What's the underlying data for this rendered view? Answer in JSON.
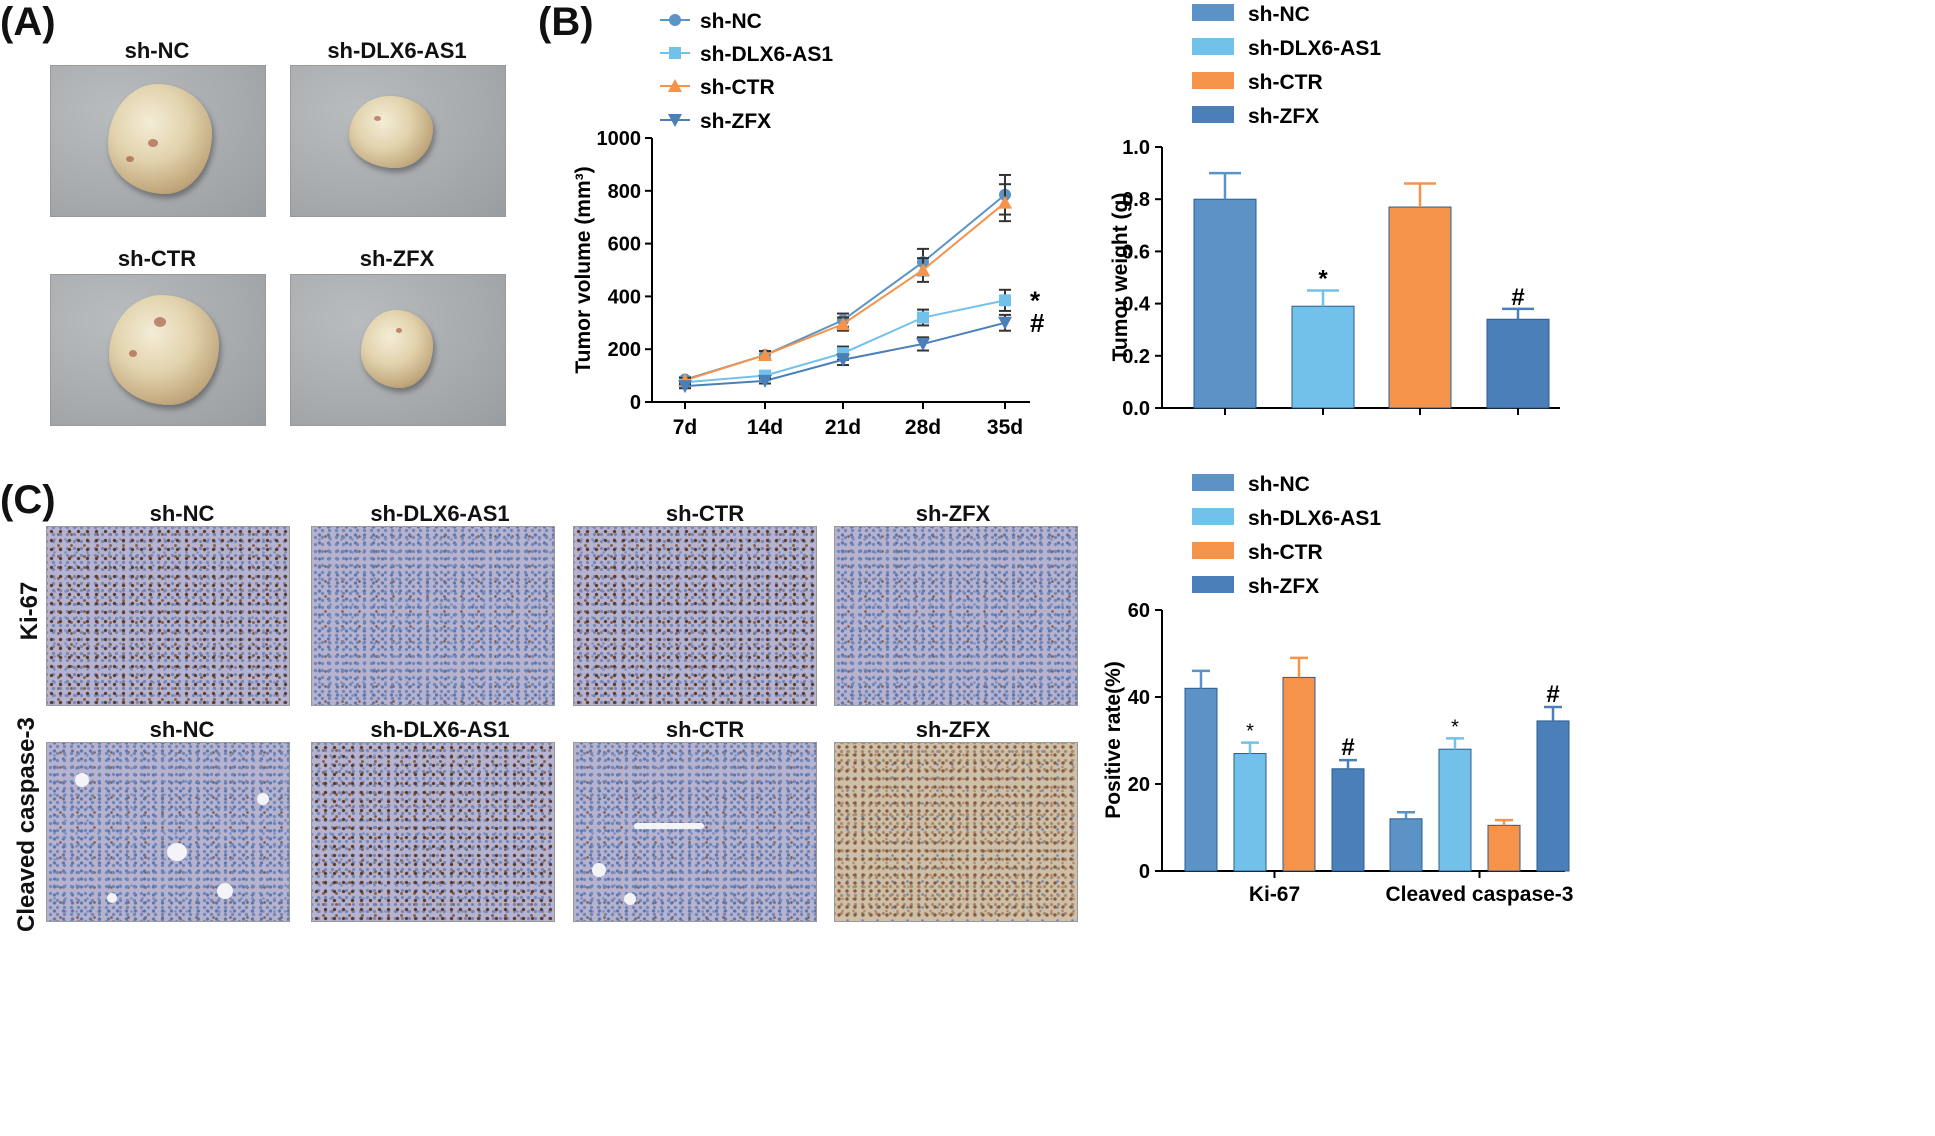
{
  "panels": {
    "a": {
      "label": "(A)",
      "images": [
        "sh-NC",
        "sh-DLX6-AS1",
        "sh-CTR",
        "sh-ZFX"
      ]
    },
    "b": {
      "label": "(B)"
    },
    "c": {
      "label": "(C)",
      "columns": [
        "sh-NC",
        "sh-DLX6-AS1",
        "sh-CTR",
        "sh-ZFX"
      ],
      "rows": [
        "Ki-67",
        "Cleaved caspase-3"
      ]
    }
  },
  "colors": {
    "sh-NC": "#5b93c7",
    "sh-DLX6-AS1": "#72c1ea",
    "sh-CTR": "#f5934b",
    "sh-ZFX": "#4a7fb9"
  },
  "chart_data": [
    {
      "type": "line",
      "categories": [
        "7d",
        "14d",
        "21d",
        "28d",
        "35d"
      ],
      "xlabel": "",
      "ylabel": "Tumor volume (mm³)",
      "ylim": [
        0,
        1000
      ],
      "yticks": [
        "0",
        "200",
        "400",
        "600",
        "800",
        "1000"
      ],
      "legend": [
        "sh-NC",
        "sh-DLX6-AS1",
        "sh-CTR",
        "sh-ZFX"
      ],
      "series": [
        {
          "name": "sh-NC",
          "marker": "circle",
          "values": [
            85,
            178,
            310,
            530,
            785
          ],
          "errors": [
            10,
            15,
            25,
            50,
            75
          ]
        },
        {
          "name": "sh-DLX6-AS1",
          "marker": "square",
          "values": [
            75,
            100,
            185,
            320,
            385
          ],
          "errors": [
            8,
            15,
            25,
            30,
            40
          ]
        },
        {
          "name": "sh-CTR",
          "marker": "triangle-up",
          "values": [
            82,
            178,
            295,
            500,
            755
          ],
          "errors": [
            10,
            15,
            25,
            45,
            70
          ]
        },
        {
          "name": "sh-ZFX",
          "marker": "triangle-down",
          "values": [
            60,
            80,
            160,
            220,
            300
          ],
          "errors": [
            8,
            10,
            20,
            25,
            30
          ]
        }
      ],
      "annotations": [
        {
          "series": "sh-DLX6-AS1",
          "text": "*"
        },
        {
          "series": "sh-ZFX",
          "text": "#"
        }
      ]
    },
    {
      "type": "bar",
      "categories": [
        "sh-NC",
        "sh-DLX6-AS1",
        "sh-CTR",
        "sh-ZFX"
      ],
      "values": [
        0.8,
        0.39,
        0.77,
        0.34
      ],
      "errors": [
        0.1,
        0.06,
        0.09,
        0.04
      ],
      "annotations": [
        "",
        "*",
        "",
        "#"
      ],
      "ylabel": "Tumor weight (g)",
      "ylim": [
        0,
        1.0
      ],
      "yticks": [
        "0.0",
        "0.2",
        "0.4",
        "0.6",
        "0.8",
        "1.0"
      ],
      "legend": [
        "sh-NC",
        "sh-DLX6-AS1",
        "sh-CTR",
        "sh-ZFX"
      ]
    },
    {
      "type": "bar",
      "categories": [
        "Ki-67",
        "Cleaved caspase-3"
      ],
      "series": [
        {
          "name": "sh-NC",
          "values": [
            42,
            12
          ],
          "errors": [
            4,
            1.5
          ],
          "annotations": [
            "",
            ""
          ]
        },
        {
          "name": "sh-DLX6-AS1",
          "values": [
            27,
            28
          ],
          "errors": [
            2.5,
            2.5
          ],
          "annotations": [
            "*",
            "*"
          ]
        },
        {
          "name": "sh-CTR",
          "values": [
            44.5,
            10.5
          ],
          "errors": [
            4.5,
            1.2
          ],
          "annotations": [
            "",
            ""
          ]
        },
        {
          "name": "sh-ZFX",
          "values": [
            23.5,
            34.5
          ],
          "errors": [
            2,
            3.2
          ],
          "annotations": [
            "#",
            "#"
          ]
        }
      ],
      "ylabel": "Positive rate(%)",
      "ylim": [
        0,
        60
      ],
      "yticks": [
        "0",
        "20",
        "40",
        "60"
      ],
      "legend": [
        "sh-NC",
        "sh-DLX6-AS1",
        "sh-CTR",
        "sh-ZFX"
      ]
    }
  ]
}
